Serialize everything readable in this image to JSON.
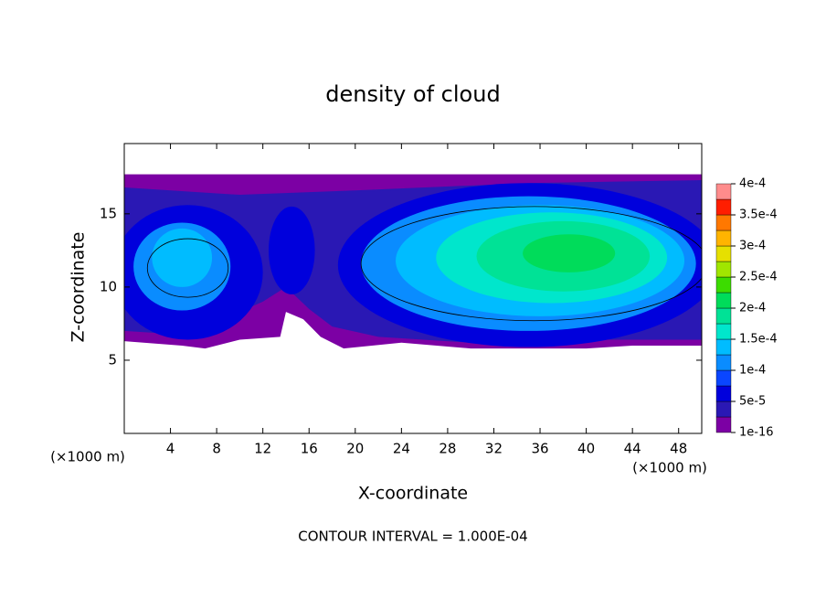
{
  "chart_data": {
    "type": "contour",
    "title": "density of cloud",
    "xlabel": "X-coordinate",
    "ylabel": "Z-coordinate",
    "x_unit": "(×1000 m)",
    "footer": "CONTOUR INTERVAL = 1.000E-04",
    "xlim": [
      0,
      50
    ],
    "ylim": [
      0,
      19.8
    ],
    "xticks": [
      4,
      8,
      12,
      16,
      20,
      24,
      28,
      32,
      36,
      40,
      44,
      48
    ],
    "yticks": [
      5,
      10,
      15
    ],
    "clim": [
      1e-16,
      0.0004
    ],
    "colorbar_ticks": [
      {
        "value": 1e-16,
        "label": "1e-16"
      },
      {
        "value": 5e-05,
        "label": "5e-5"
      },
      {
        "value": 0.0001,
        "label": "1e-4"
      },
      {
        "value": 0.00015,
        "label": "1.5e-4"
      },
      {
        "value": 0.0002,
        "label": "2e-4"
      },
      {
        "value": 0.00025,
        "label": "2.5e-4"
      },
      {
        "value": 0.0003,
        "label": "3e-4"
      },
      {
        "value": 0.00035,
        "label": "3.5e-4"
      },
      {
        "value": 0.0004,
        "label": "4e-4"
      }
    ],
    "colors": [
      "#7c00a4",
      "#2a18b4",
      "#0000dc",
      "#0a46ff",
      "#0a8cff",
      "#00bcff",
      "#00e6cc",
      "#00e296",
      "#00dc5a",
      "#3cdc00",
      "#a0e600",
      "#e6e000",
      "#ffb400",
      "#ff7800",
      "#ff1e00",
      "#ff8c8c"
    ]
  }
}
